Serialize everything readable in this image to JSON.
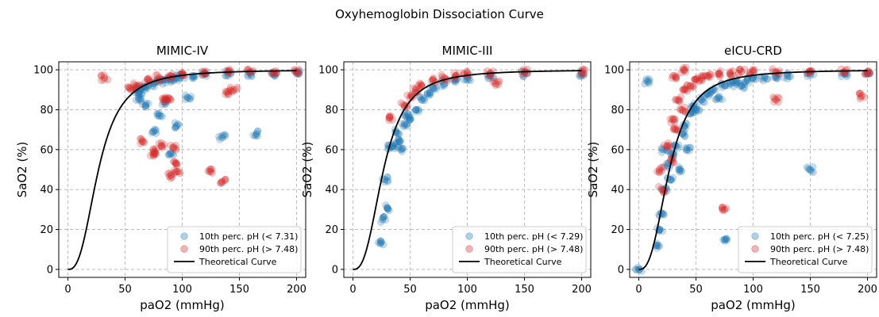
{
  "figure_title": "Oxyhemoglobin Dissociation Curve",
  "colors": {
    "low_ph": "#1f77b4",
    "high_ph": "#d62728",
    "curve": "#000000",
    "grid": "#b0b0b0"
  },
  "chart_data": [
    {
      "type": "scatter",
      "title": "MIMIC-IV",
      "xlabel": "paO2 (mmHg)",
      "ylabel": "SaO2 (%)",
      "xlim": [
        -8,
        208
      ],
      "ylim": [
        -4,
        104
      ],
      "xticks": [
        0,
        50,
        100,
        150,
        200
      ],
      "yticks": [
        0,
        20,
        40,
        60,
        80,
        100
      ],
      "grid": true,
      "legend_position": "lower-right",
      "series": [
        {
          "name": "10th perc. pH (< 7.31)",
          "color": "#1f77b4",
          "x": [
            60,
            62,
            65,
            70,
            75,
            80,
            85,
            90,
            95,
            100,
            110,
            120,
            140,
            160,
            180,
            200,
            62,
            68,
            75,
            80,
            85,
            90,
            95,
            105,
            135,
            165
          ],
          "y": [
            90,
            88,
            91,
            92,
            93,
            94,
            95,
            95,
            96,
            97,
            97,
            98,
            98,
            98,
            98,
            98,
            85,
            82,
            69,
            77,
            84,
            58,
            72,
            86,
            66,
            68
          ]
        },
        {
          "name": "90th perc. pH (> 7.48)",
          "color": "#d62728",
          "x": [
            32,
            55,
            60,
            70,
            80,
            90,
            100,
            120,
            140,
            160,
            180,
            200,
            65,
            75,
            75,
            82,
            85,
            88,
            90,
            92,
            95,
            95,
            125,
            135,
            140,
            145
          ],
          "y": [
            96,
            90,
            92,
            95,
            96,
            97,
            98,
            98,
            99,
            99,
            99,
            99,
            64,
            59,
            57,
            62,
            85,
            86,
            47,
            61,
            53,
            49,
            49,
            44,
            89,
            90
          ]
        },
        {
          "name": "Theoretical Curve",
          "color": "#000000",
          "model": "hill",
          "p50": 26.8,
          "n": 2.7,
          "x": [
            0,
            10,
            20,
            26.8,
            40,
            60,
            80,
            100,
            150,
            200
          ],
          "y": [
            0,
            6.6,
            31,
            50,
            75.3,
            89.9,
            95.3,
            97.2,
            99.1,
            99.6
          ]
        }
      ]
    },
    {
      "type": "scatter",
      "title": "MIMIC-III",
      "xlabel": "paO2 (mmHg)",
      "ylabel": "SaO2 (%)",
      "xlim": [
        -8,
        208
      ],
      "ylim": [
        -4,
        104
      ],
      "xticks": [
        0,
        50,
        100,
        150,
        200
      ],
      "yticks": [
        0,
        20,
        40,
        60,
        80,
        100
      ],
      "grid": true,
      "legend_position": "lower-right",
      "series": [
        {
          "name": "10th perc. pH (< 7.29)",
          "color": "#1f77b4",
          "x": [
            24,
            26,
            28,
            30,
            33,
            35,
            38,
            40,
            42,
            45,
            48,
            50,
            55,
            60,
            65,
            70,
            80,
            90,
            100,
            120,
            150,
            200
          ],
          "y": [
            13,
            25,
            45,
            31,
            61,
            62,
            69,
            65,
            60,
            73,
            78,
            75,
            80,
            85,
            88,
            91,
            93,
            95,
            96,
            97,
            98,
            98
          ]
        },
        {
          "name": "90th perc. pH (> 7.48)",
          "color": "#d62728",
          "x": [
            32,
            45,
            50,
            55,
            60,
            70,
            80,
            90,
            100,
            120,
            125,
            150,
            200
          ],
          "y": [
            76,
            82,
            86,
            90,
            92,
            95,
            96,
            97,
            98,
            98,
            93,
            99,
            99
          ]
        },
        {
          "name": "Theoretical Curve",
          "color": "#000000",
          "model": "hill",
          "p50": 26.8,
          "n": 2.7,
          "x": [
            0,
            10,
            20,
            26.8,
            40,
            60,
            80,
            100,
            150,
            200
          ],
          "y": [
            0,
            6.6,
            31,
            50,
            75.3,
            89.9,
            95.3,
            97.2,
            99.1,
            99.6
          ]
        }
      ]
    },
    {
      "type": "scatter",
      "title": "eICU-CRD",
      "xlabel": "paO2 (mmHg)",
      "ylabel": "SaO2 (%)",
      "xlim": [
        -8,
        208
      ],
      "ylim": [
        -4,
        104
      ],
      "xticks": [
        0,
        50,
        100,
        150,
        200
      ],
      "yticks": [
        0,
        20,
        40,
        60,
        80,
        100
      ],
      "grid": true,
      "legend_position": "lower-right",
      "series": [
        {
          "name": "10th perc. pH (< 7.25)",
          "color": "#1f77b4",
          "x": [
            0,
            15,
            18,
            20,
            22,
            25,
            28,
            30,
            32,
            35,
            38,
            40,
            42,
            45,
            48,
            50,
            55,
            60,
            65,
            70,
            75,
            80,
            85,
            90,
            95,
            100,
            110,
            120,
            130,
            150,
            180,
            200,
            8,
            75,
            150,
            22
          ],
          "y": [
            0,
            12,
            20,
            28,
            40,
            52,
            45,
            58,
            62,
            50,
            68,
            72,
            60,
            78,
            82,
            80,
            85,
            88,
            90,
            86,
            92,
            93,
            94,
            92,
            95,
            96,
            96,
            97,
            97,
            98,
            98,
            98,
            94,
            15,
            50,
            60
          ]
        },
        {
          "name": "90th perc. pH (> 7.48)",
          "color": "#d62728",
          "x": [
            18,
            20,
            25,
            28,
            30,
            32,
            35,
            38,
            40,
            45,
            50,
            55,
            60,
            70,
            80,
            90,
            100,
            120,
            150,
            180,
            200,
            30,
            40,
            75,
            120,
            195
          ],
          "y": [
            50,
            40,
            62,
            55,
            75,
            70,
            85,
            80,
            90,
            92,
            95,
            96,
            97,
            98,
            98,
            99,
            99,
            99,
            99,
            99,
            99,
            97,
            100,
            30,
            85,
            87
          ]
        },
        {
          "name": "Theoretical Curve",
          "color": "#000000",
          "model": "hill",
          "p50": 26.8,
          "n": 2.7,
          "x": [
            0,
            10,
            20,
            26.8,
            40,
            60,
            80,
            100,
            150,
            200
          ],
          "y": [
            0,
            6.6,
            31,
            50,
            75.3,
            89.9,
            95.3,
            97.2,
            99.1,
            99.6
          ]
        }
      ]
    }
  ]
}
